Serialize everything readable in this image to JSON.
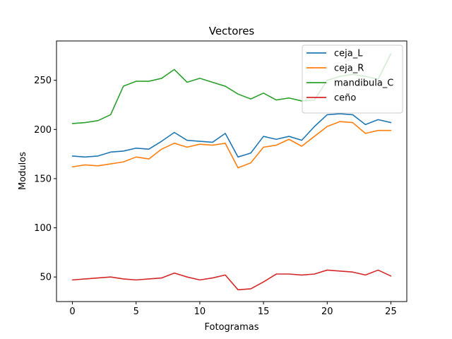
{
  "chart_data": {
    "type": "line",
    "title": "Vectores",
    "xlabel": "Fotogramas",
    "ylabel": "Modulos",
    "x": [
      0,
      1,
      2,
      3,
      4,
      5,
      6,
      7,
      8,
      9,
      10,
      11,
      12,
      13,
      14,
      15,
      16,
      17,
      18,
      19,
      20,
      21,
      22,
      23,
      24,
      25
    ],
    "xlim": [
      -1.25,
      26.25
    ],
    "ylim": [
      25,
      290
    ],
    "xticks": [
      0,
      5,
      10,
      15,
      20,
      25
    ],
    "yticks": [
      50,
      100,
      150,
      200,
      250
    ],
    "grid": false,
    "legend_position": "top-right",
    "series": [
      {
        "name": "ceja_L",
        "color": "#1f77b4",
        "values": [
          173,
          172,
          173,
          177,
          178,
          181,
          180,
          188,
          197,
          189,
          188,
          187,
          196,
          172,
          176,
          193,
          190,
          193,
          189,
          203,
          215,
          216,
          215,
          205,
          210,
          207
        ]
      },
      {
        "name": "ceja_R",
        "color": "#ff7f0e",
        "values": [
          162,
          164,
          163,
          165,
          167,
          172,
          170,
          180,
          186,
          182,
          185,
          184,
          186,
          161,
          166,
          182,
          184,
          190,
          183,
          193,
          203,
          208,
          207,
          196,
          199,
          199
        ]
      },
      {
        "name": "mandibula_C",
        "color": "#2ca02c",
        "values": [
          206,
          207,
          209,
          215,
          244,
          249,
          249,
          252,
          261,
          248,
          252,
          248,
          244,
          236,
          231,
          237,
          230,
          232,
          229,
          230,
          250,
          254,
          256,
          254,
          251,
          277
        ]
      },
      {
        "name": "ceño",
        "color": "#d62728",
        "values": [
          47,
          48,
          49,
          50,
          48,
          47,
          48,
          49,
          54,
          50,
          47,
          49,
          52,
          37,
          38,
          45,
          53,
          53,
          52,
          53,
          57,
          56,
          55,
          52,
          57,
          51
        ]
      }
    ]
  }
}
